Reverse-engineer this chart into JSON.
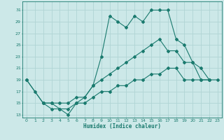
{
  "xlabel": "Humidex (Indice chaleur)",
  "bg_color": "#cce8e8",
  "grid_color": "#b0d4d4",
  "line_color": "#1a7a6e",
  "xlim": [
    -0.5,
    23.5
  ],
  "ylim": [
    12.5,
    32.5
  ],
  "xticks": [
    0,
    1,
    2,
    3,
    4,
    5,
    6,
    7,
    8,
    9,
    10,
    11,
    12,
    13,
    14,
    15,
    16,
    17,
    18,
    19,
    20,
    21,
    22,
    23
  ],
  "yticks": [
    13,
    15,
    17,
    19,
    21,
    23,
    25,
    27,
    29,
    31
  ],
  "line1": {
    "x": [
      0,
      1,
      2,
      3,
      4,
      5,
      6,
      7,
      8,
      9,
      10,
      11,
      12,
      13,
      14,
      15,
      16,
      17,
      18,
      19,
      20,
      21,
      22
    ],
    "y": [
      19,
      17,
      15,
      14,
      14,
      13,
      15,
      16,
      18,
      23,
      30,
      29,
      28,
      30,
      29,
      31,
      31,
      31,
      26,
      25,
      22,
      21,
      19
    ]
  },
  "line2": {
    "x": [
      0,
      2,
      3,
      4,
      5,
      6,
      7,
      8,
      9,
      10,
      11,
      12,
      13,
      14,
      15,
      16,
      17,
      18,
      19,
      20,
      21,
      22
    ],
    "y": [
      19,
      15,
      15,
      15,
      15,
      16,
      16,
      18,
      19,
      20,
      21,
      22,
      23,
      24,
      25,
      26,
      24,
      24,
      22,
      22,
      19,
      19
    ]
  },
  "line3": {
    "x": [
      2,
      3,
      4,
      5,
      6,
      7,
      8,
      9,
      10,
      11,
      12,
      13,
      14,
      15,
      16,
      17,
      18,
      19,
      20,
      21,
      22,
      23
    ],
    "y": [
      15,
      15,
      14,
      14,
      15,
      15,
      16,
      17,
      17,
      18,
      18,
      19,
      19,
      20,
      20,
      21,
      21,
      19,
      19,
      19,
      19,
      19
    ]
  }
}
